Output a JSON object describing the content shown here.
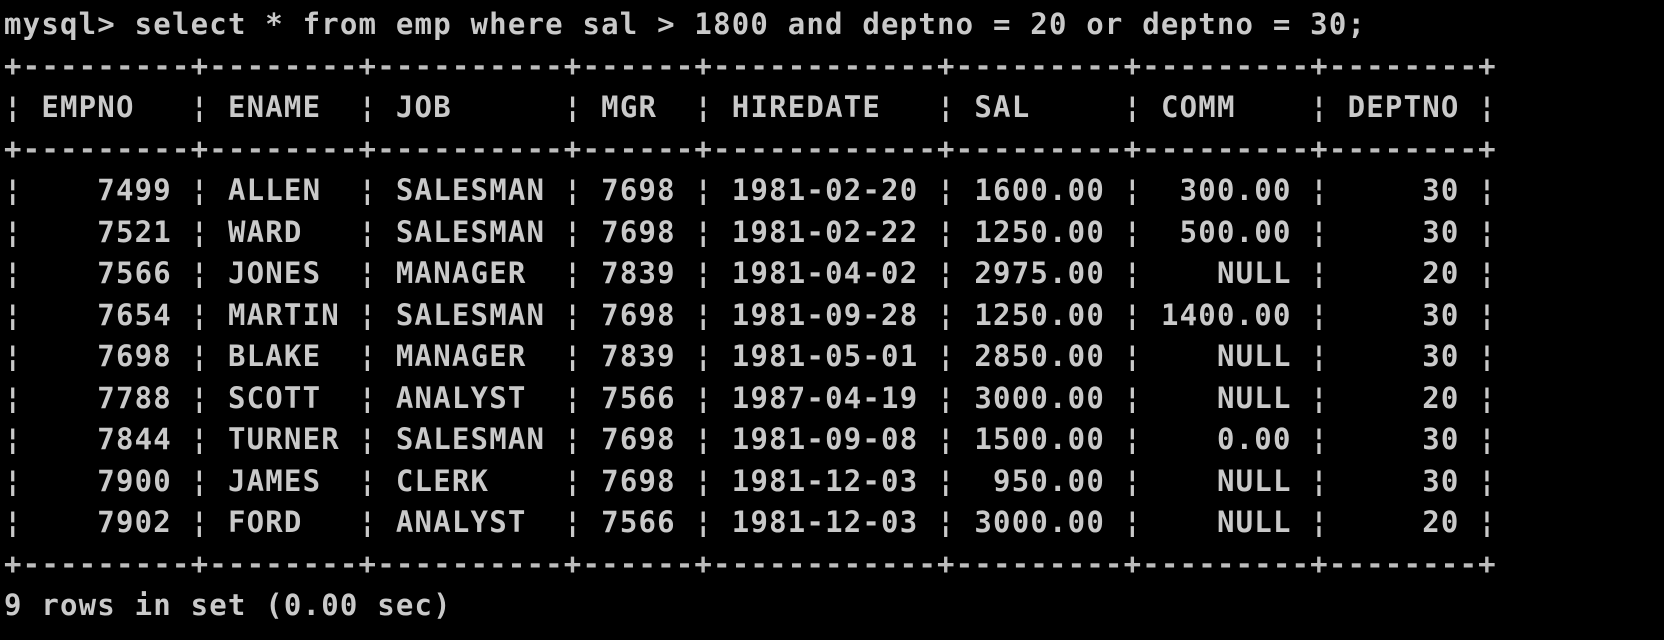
{
  "console": {
    "prompt": "mysql>",
    "command": "select * from emp where sal > 1800 and deptno = 20 or deptno = 30;",
    "border_char": "-",
    "corner_char": "+",
    "column_sep": "¦",
    "columns": [
      {
        "name": "EMPNO",
        "width": 7,
        "align": "right"
      },
      {
        "name": "ENAME",
        "width": 6,
        "align": "left"
      },
      {
        "name": "JOB",
        "width": 8,
        "align": "left"
      },
      {
        "name": "MGR",
        "width": 4,
        "align": "left"
      },
      {
        "name": "HIREDATE",
        "width": 10,
        "align": "left"
      },
      {
        "name": "SAL",
        "width": 7,
        "align": "right"
      },
      {
        "name": "COMM",
        "width": 7,
        "align": "right"
      },
      {
        "name": "DEPTNO",
        "width": 6,
        "align": "right"
      }
    ],
    "rows": [
      [
        "7499",
        "ALLEN",
        "SALESMAN",
        "7698",
        "1981-02-20",
        "1600.00",
        "300.00",
        "30"
      ],
      [
        "7521",
        "WARD",
        "SALESMAN",
        "7698",
        "1981-02-22",
        "1250.00",
        "500.00",
        "30"
      ],
      [
        "7566",
        "JONES",
        "MANAGER",
        "7839",
        "1981-04-02",
        "2975.00",
        "NULL",
        "20"
      ],
      [
        "7654",
        "MARTIN",
        "SALESMAN",
        "7698",
        "1981-09-28",
        "1250.00",
        "1400.00",
        "30"
      ],
      [
        "7698",
        "BLAKE",
        "MANAGER",
        "7839",
        "1981-05-01",
        "2850.00",
        "NULL",
        "30"
      ],
      [
        "7788",
        "SCOTT",
        "ANALYST",
        "7566",
        "1987-04-19",
        "3000.00",
        "NULL",
        "20"
      ],
      [
        "7844",
        "TURNER",
        "SALESMAN",
        "7698",
        "1981-09-08",
        "1500.00",
        "0.00",
        "30"
      ],
      [
        "7900",
        "JAMES",
        "CLERK",
        "7698",
        "1981-12-03",
        "950.00",
        "NULL",
        "30"
      ],
      [
        "7902",
        "FORD",
        "ANALYST",
        "7566",
        "1981-12-03",
        "3000.00",
        "NULL",
        "20"
      ]
    ],
    "footer": "9 rows in set (0.00 sec)"
  }
}
